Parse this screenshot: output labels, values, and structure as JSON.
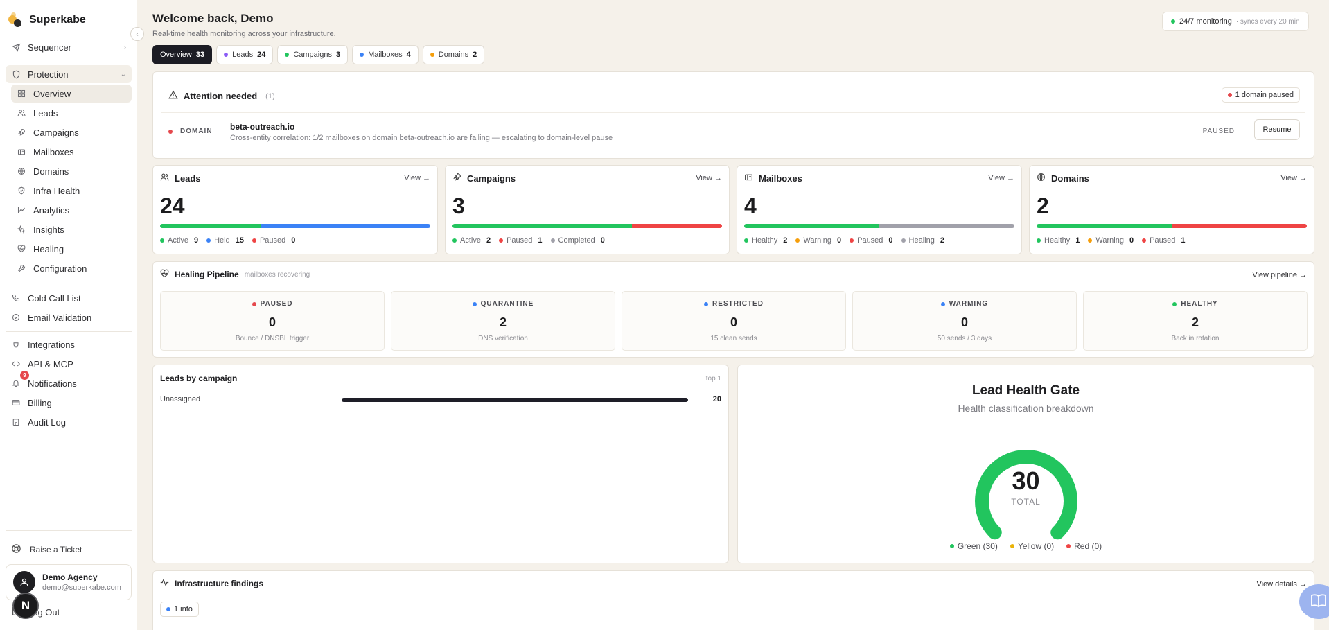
{
  "brand": {
    "name": "Superkabe"
  },
  "sidebar": {
    "sequencer": "Sequencer",
    "protection": "Protection",
    "sub_items": [
      {
        "label": "Overview"
      },
      {
        "label": "Leads"
      },
      {
        "label": "Campaigns"
      },
      {
        "label": "Mailboxes"
      },
      {
        "label": "Domains"
      },
      {
        "label": "Infra Health"
      },
      {
        "label": "Analytics"
      },
      {
        "label": "Insights"
      },
      {
        "label": "Healing"
      },
      {
        "label": "Configuration"
      }
    ],
    "tools": [
      {
        "label": "Cold Call List"
      },
      {
        "label": "Email Validation"
      }
    ],
    "more": [
      {
        "label": "Integrations"
      },
      {
        "label": "API & MCP"
      },
      {
        "label": "Notifications"
      },
      {
        "label": "Billing"
      },
      {
        "label": "Audit Log"
      }
    ],
    "notifications_badge": "9",
    "raise_ticket": "Raise a Ticket",
    "user": {
      "name": "Demo Agency",
      "email": "demo@superkabe.com"
    },
    "logout": "Log Out",
    "float_initial": "N"
  },
  "header": {
    "title": "Welcome back, Demo",
    "subtitle": "Real-time health monitoring across your infrastructure.",
    "monitoring": "24/7 monitoring",
    "sync": "· syncs every 20 min"
  },
  "tabs": [
    {
      "label": "Overview",
      "count": "33"
    },
    {
      "label": "Leads",
      "count": "24",
      "color": "#8b5cf6"
    },
    {
      "label": "Campaigns",
      "count": "3",
      "color": "#22c55e"
    },
    {
      "label": "Mailboxes",
      "count": "4",
      "color": "#3b82f6"
    },
    {
      "label": "Domains",
      "count": "2",
      "color": "#f59e0b"
    }
  ],
  "attention": {
    "title": "Attention needed",
    "count": "(1)",
    "badge": "1 domain paused",
    "row": {
      "type": "DOMAIN",
      "name": "beta-outreach.io",
      "description": "Cross-entity correlation: 1/2 mailboxes on domain beta-outreach.io are failing — escalating to domain-level pause",
      "status": "PAUSED",
      "action": "Resume"
    }
  },
  "stats": {
    "view_label": "View →",
    "leads": {
      "title": "Leads",
      "total": "24",
      "legend": [
        {
          "label": "Active",
          "value": "9",
          "color": "#22c55e"
        },
        {
          "label": "Held",
          "value": "15",
          "color": "#3b82f6"
        },
        {
          "label": "Paused",
          "value": "0",
          "color": "#ef4444"
        }
      ],
      "bar": [
        {
          "fraction": 0.375,
          "color": "#22c55e"
        },
        {
          "fraction": 0.625,
          "color": "#3b82f6"
        }
      ]
    },
    "campaigns": {
      "title": "Campaigns",
      "total": "3",
      "legend": [
        {
          "label": "Active",
          "value": "2",
          "color": "#22c55e"
        },
        {
          "label": "Paused",
          "value": "1",
          "color": "#ef4444"
        },
        {
          "label": "Completed",
          "value": "0",
          "color": "#a1a1aa"
        }
      ],
      "bar": [
        {
          "fraction": 0.667,
          "color": "#22c55e"
        },
        {
          "fraction": 0.333,
          "color": "#ef4444"
        }
      ]
    },
    "mailboxes": {
      "title": "Mailboxes",
      "total": "4",
      "legend": [
        {
          "label": "Healthy",
          "value": "2",
          "color": "#22c55e"
        },
        {
          "label": "Warning",
          "value": "0",
          "color": "#f59e0b"
        },
        {
          "label": "Paused",
          "value": "0",
          "color": "#ef4444"
        },
        {
          "label": "Healing",
          "value": "2",
          "color": "#a1a1aa"
        }
      ],
      "bar": [
        {
          "fraction": 0.5,
          "color": "#22c55e"
        },
        {
          "fraction": 0.5,
          "color": "#a1a1aa"
        }
      ]
    },
    "domains": {
      "title": "Domains",
      "total": "2",
      "legend": [
        {
          "label": "Healthy",
          "value": "1",
          "color": "#22c55e"
        },
        {
          "label": "Warning",
          "value": "0",
          "color": "#f59e0b"
        },
        {
          "label": "Paused",
          "value": "1",
          "color": "#ef4444"
        }
      ],
      "bar": [
        {
          "fraction": 0.5,
          "color": "#22c55e"
        },
        {
          "fraction": 0.5,
          "color": "#ef4444"
        }
      ]
    }
  },
  "healing": {
    "title": "Healing Pipeline",
    "subtitle": "mailboxes recovering",
    "link": "View pipeline →",
    "stages": [
      {
        "label": "PAUSED",
        "value": "0",
        "desc": "Bounce / DNSBL trigger",
        "color": "#ef4444"
      },
      {
        "label": "QUARANTINE",
        "value": "2",
        "desc": "DNS verification",
        "color": "#3b82f6"
      },
      {
        "label": "RESTRICTED",
        "value": "0",
        "desc": "15 clean sends",
        "color": "#3b82f6"
      },
      {
        "label": "WARMING",
        "value": "0",
        "desc": "50 sends / 3 days",
        "color": "#3b82f6"
      },
      {
        "label": "HEALTHY",
        "value": "2",
        "desc": "Back in rotation",
        "color": "#22c55e"
      }
    ]
  },
  "leads_by_campaign": {
    "title": "Leads by campaign",
    "top": "top 1",
    "rows": [
      {
        "label": "Unassigned",
        "value": "20",
        "fraction": 1.0
      }
    ]
  },
  "health_gate": {
    "title": "Lead Health Gate",
    "subtitle": "Health classification breakdown",
    "total": "30",
    "total_label": "TOTAL",
    "legend": [
      {
        "label": "Green (30)",
        "color": "#22c55e"
      },
      {
        "label": "Yellow (0)",
        "color": "#eab308"
      },
      {
        "label": "Red (0)",
        "color": "#ef4444"
      }
    ],
    "green_fraction": 1.0
  },
  "infra": {
    "title": "Infrastructure findings",
    "link": "View details →",
    "chip": "1 info"
  }
}
